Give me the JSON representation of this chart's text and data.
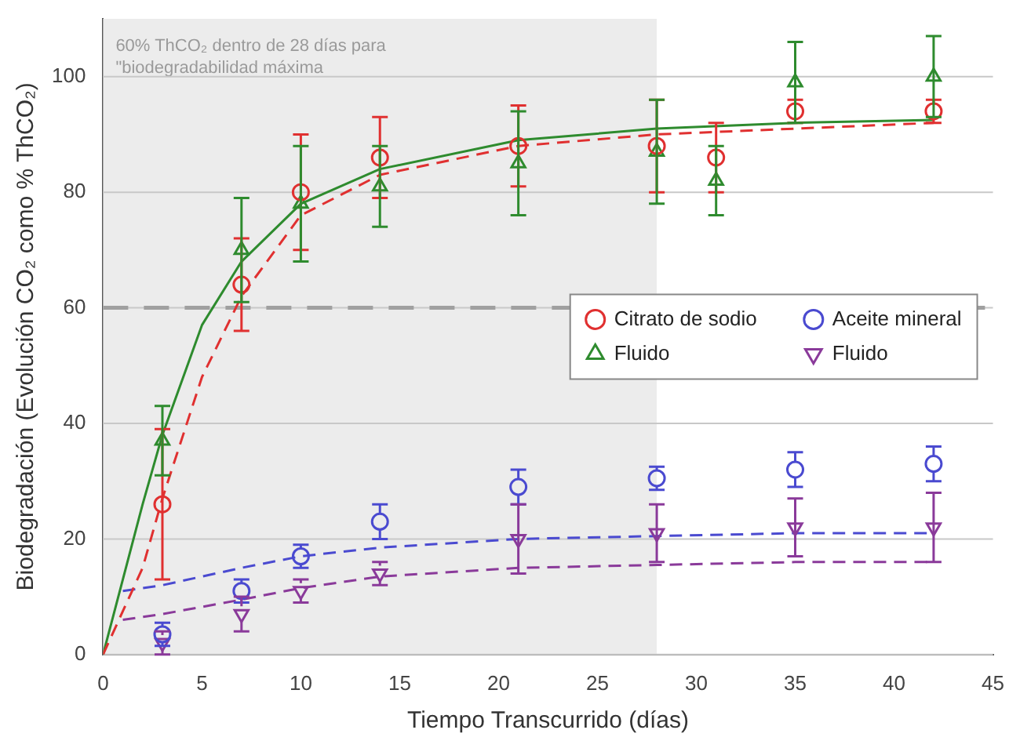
{
  "chart_data": {
    "type": "scatter",
    "xlabel": "Tiempo Transcurrido (días)",
    "ylabel": "Biodegradación (Evolución CO₂ como % ThCO₂)",
    "xlim": [
      0,
      45
    ],
    "xticks": [
      0,
      5,
      10,
      15,
      20,
      25,
      30,
      35,
      40,
      45
    ],
    "ylim": [
      0,
      110
    ],
    "yticks": [
      0,
      20,
      40,
      60,
      80,
      100
    ],
    "grid": "y",
    "legend": "right",
    "bands": [
      {
        "axis": "x",
        "from": 0,
        "to": 28,
        "color": "#ececec",
        "label": "60% ThCO₂ dentro de 28 días para\n\"biodegradabilidad máxima"
      }
    ],
    "ref_lines": [
      {
        "axis": "y",
        "value": 60,
        "color": "#a0a0a0",
        "line_style": "dashed"
      }
    ],
    "series": [
      {
        "type": "line",
        "color": "#e03030",
        "marker": "none",
        "line_style": "dashed",
        "x": [
          0,
          2,
          3,
          5,
          7,
          10,
          14,
          21,
          28,
          35,
          42
        ],
        "values": [
          0,
          15,
          27,
          48,
          62,
          76,
          83,
          88,
          90,
          91,
          92
        ]
      },
      {
        "type": "line",
        "color": "#2e8b2e",
        "marker": "none",
        "line_style": "solid",
        "x": [
          0,
          2,
          3,
          5,
          7,
          10,
          14,
          21,
          28,
          35,
          42
        ],
        "values": [
          0,
          26,
          38,
          57,
          68,
          78,
          84,
          89,
          91,
          92,
          92.5
        ]
      },
      {
        "type": "line",
        "color": "#4a4ad0",
        "marker": "none",
        "line_style": "dashed",
        "x": [
          1,
          3,
          7,
          10,
          14,
          21,
          28,
          35,
          42
        ],
        "values": [
          11,
          12,
          15,
          17,
          18.5,
          20,
          20.5,
          21,
          21
        ]
      },
      {
        "type": "line",
        "color": "#8a3a9a",
        "marker": "none",
        "line_style": "dashed",
        "x": [
          1,
          3,
          7,
          10,
          14,
          21,
          28,
          35,
          42
        ],
        "values": [
          6,
          7,
          9.5,
          11.5,
          13.5,
          15,
          15.5,
          16,
          16
        ]
      },
      {
        "name": "Citrato de sodio",
        "color": "#e03030",
        "marker": "circle",
        "x": [
          3,
          7,
          10,
          14,
          21,
          28,
          31,
          35,
          42
        ],
        "values": [
          26,
          64,
          80,
          86,
          88,
          88,
          86,
          94,
          94
        ],
        "errors": [
          13,
          8,
          10,
          7,
          7,
          8,
          6,
          2,
          2
        ]
      },
      {
        "name": "Fluido",
        "color": "#2e8b2e",
        "marker": "triangle",
        "x": [
          3,
          7,
          10,
          14,
          21,
          28,
          31,
          35,
          42
        ],
        "values": [
          37,
          70,
          78,
          81,
          85,
          87,
          82,
          99,
          100
        ],
        "errors": [
          6,
          9,
          10,
          7,
          9,
          9,
          6,
          7,
          7
        ]
      },
      {
        "name": "Aceite mineral",
        "color": "#4a4ad0",
        "marker": "circle",
        "x": [
          3,
          7,
          10,
          14,
          21,
          28,
          35,
          42
        ],
        "values": [
          3.5,
          11,
          17,
          23,
          29,
          30.5,
          32,
          33
        ],
        "errors": [
          2,
          2,
          2,
          3,
          3,
          2,
          3,
          3
        ]
      },
      {
        "name": "Fluido",
        "color": "#8a3a9a",
        "marker": "triangle-down",
        "x": [
          3,
          7,
          10,
          14,
          21,
          28,
          35,
          42
        ],
        "values": [
          2,
          7,
          11,
          14,
          20,
          21,
          22,
          22
        ],
        "errors": [
          2,
          3,
          2,
          2,
          6,
          5,
          5,
          6
        ]
      }
    ]
  }
}
